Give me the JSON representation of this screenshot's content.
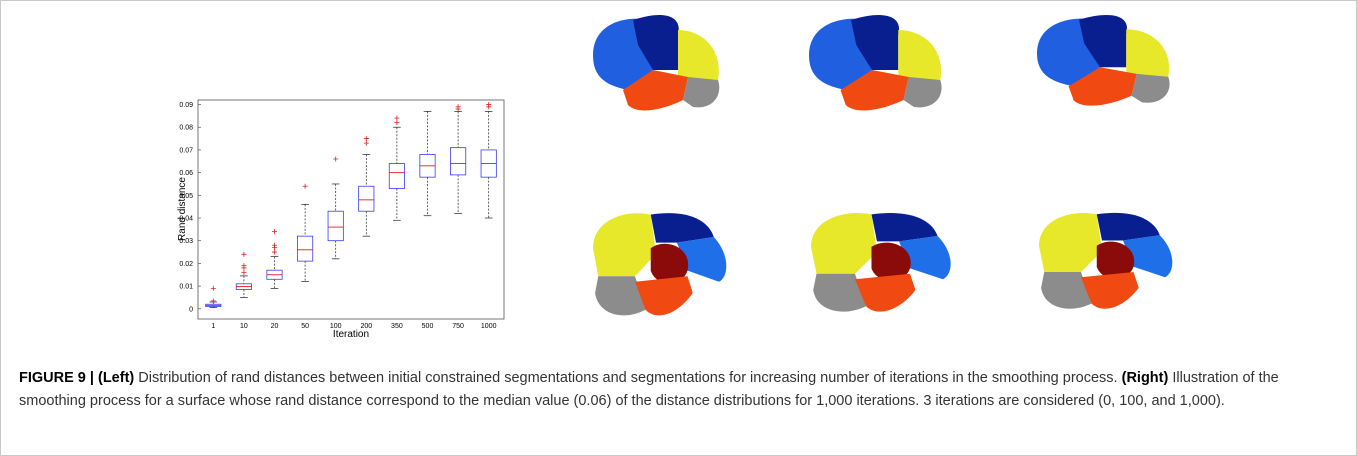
{
  "chart_data": {
    "type": "box",
    "xlabel": "Iteration",
    "ylabel": "Rand distance",
    "categories": [
      "1",
      "10",
      "20",
      "50",
      "100",
      "200",
      "350",
      "500",
      "750",
      "1000"
    ],
    "values": [
      {
        "min": 0.0005,
        "q1": 0.001,
        "median": 0.0015,
        "q3": 0.002,
        "max": 0.003,
        "outliers": [
          0.0035,
          0.009
        ]
      },
      {
        "min": 0.005,
        "q1": 0.0085,
        "median": 0.0098,
        "q3": 0.011,
        "max": 0.0145,
        "outliers": [
          0.016,
          0.018,
          0.019,
          0.024
        ]
      },
      {
        "min": 0.009,
        "q1": 0.013,
        "median": 0.015,
        "q3": 0.017,
        "max": 0.023,
        "outliers": [
          0.025,
          0.027,
          0.028,
          0.034
        ]
      },
      {
        "min": 0.012,
        "q1": 0.021,
        "median": 0.026,
        "q3": 0.032,
        "max": 0.046,
        "outliers": [
          0.054
        ]
      },
      {
        "min": 0.022,
        "q1": 0.03,
        "median": 0.036,
        "q3": 0.043,
        "max": 0.055,
        "outliers": [
          0.066
        ]
      },
      {
        "min": 0.032,
        "q1": 0.043,
        "median": 0.048,
        "q3": 0.054,
        "max": 0.068,
        "outliers": [
          0.073,
          0.075
        ]
      },
      {
        "min": 0.039,
        "q1": 0.053,
        "median": 0.06,
        "q3": 0.064,
        "max": 0.08,
        "outliers": [
          0.082,
          0.084
        ]
      },
      {
        "min": 0.041,
        "q1": 0.058,
        "median": 0.063,
        "q3": 0.068,
        "max": 0.087,
        "outliers": []
      },
      {
        "min": 0.042,
        "q1": 0.059,
        "median": 0.064,
        "q3": 0.071,
        "max": 0.087,
        "outliers": [
          0.088,
          0.089
        ]
      },
      {
        "min": 0.04,
        "q1": 0.058,
        "median": 0.064,
        "q3": 0.07,
        "max": 0.087,
        "outliers": [
          0.089,
          0.09
        ]
      }
    ],
    "box_color": "#3a3af0",
    "median_color": "#e02020",
    "outlier_color": "#e02020",
    "whisker_color": "#222222",
    "ylim": [
      -0.0045,
      0.092
    ],
    "yticks": [
      0,
      0.01,
      0.02,
      0.03,
      0.04,
      0.05,
      0.06,
      0.07,
      0.08,
      0.09
    ]
  },
  "caption": {
    "label": "FIGURE 9 |",
    "left_heading": "(Left)",
    "left_text": "Distribution of rand distances between initial constrained segmentations and segmentations for increasing number of iterations in the smoothing process.",
    "right_heading": "(Right)",
    "right_text": "Illustration of the smoothing process for a surface whose rand distance correspond to the median value (0.06) of the distance distributions for 1,000 iterations. 3 iterations are considered (0, 100, and 1,000)."
  }
}
